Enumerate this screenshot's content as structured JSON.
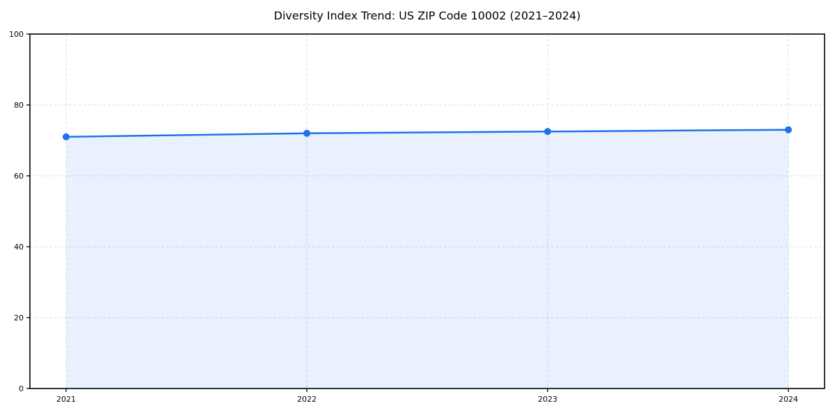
{
  "chart_data": {
    "type": "area",
    "title": "Diversity Index Trend: US ZIP Code 10002 (2021–2024)",
    "series_name": "Diversity Index",
    "categories": [
      "2021",
      "2022",
      "2023",
      "2024"
    ],
    "x": [
      2021,
      2022,
      2023,
      2024
    ],
    "values": [
      71,
      72,
      72.5,
      73
    ],
    "xlabel": "",
    "ylabel": "",
    "ylim": [
      0,
      100
    ],
    "y_ticks": [
      0,
      20,
      40,
      60,
      80,
      100
    ],
    "grid": true,
    "grid_style": "dashed",
    "grid_color": "#dcdcdc",
    "line_color": "#1a73e8",
    "fill_color": "#e8f1fd",
    "fill_opacity": 0.1,
    "marker": "circle",
    "axis_color": "#000000",
    "background": "#ffffff",
    "legend": "none"
  }
}
